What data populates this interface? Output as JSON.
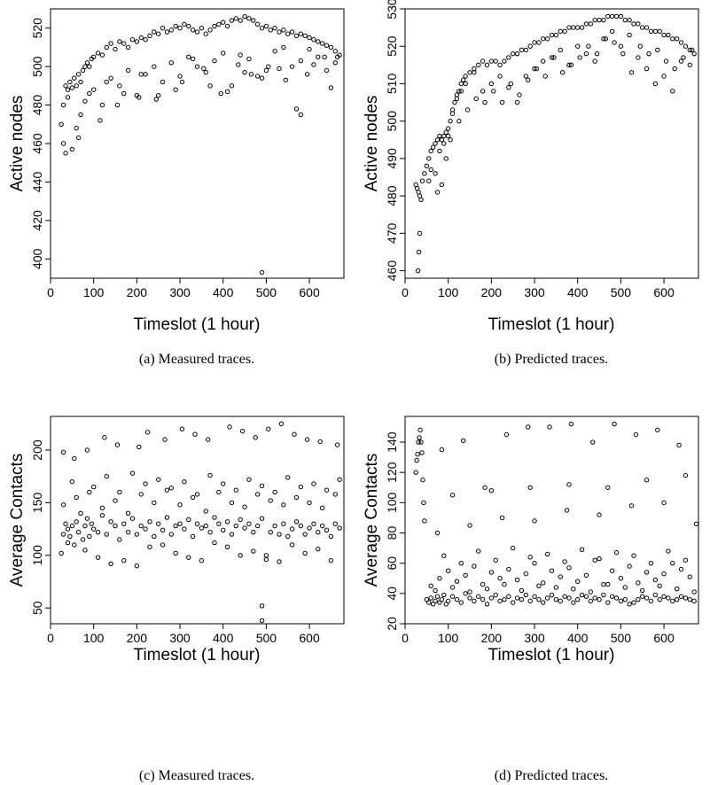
{
  "chart_data": [
    {
      "type": "scatter",
      "caption": "(a)  Measured traces.",
      "xlabel": "Timeslot (1 hour)",
      "ylabel": "Active nodes",
      "xlim": [
        0,
        680
      ],
      "ylim": [
        390,
        530
      ],
      "xticks": [
        0,
        100,
        200,
        300,
        400,
        500,
        600
      ],
      "yticks": [
        400,
        420,
        440,
        460,
        480,
        500,
        520
      ],
      "x": [
        25,
        30,
        35,
        40,
        45,
        50,
        55,
        60,
        65,
        70,
        75,
        80,
        85,
        90,
        95,
        100,
        110,
        120,
        130,
        140,
        150,
        160,
        170,
        180,
        190,
        200,
        210,
        220,
        230,
        240,
        250,
        260,
        270,
        280,
        290,
        300,
        310,
        320,
        330,
        340,
        350,
        360,
        370,
        380,
        390,
        400,
        410,
        420,
        430,
        440,
        450,
        460,
        470,
        480,
        490,
        500,
        510,
        520,
        530,
        540,
        550,
        560,
        570,
        580,
        590,
        600,
        610,
        620,
        630,
        640,
        650,
        660,
        670,
        30,
        50,
        60,
        70,
        80,
        100,
        120,
        140,
        160,
        180,
        200,
        220,
        240,
        260,
        280,
        300,
        320,
        340,
        360,
        380,
        400,
        420,
        440,
        460,
        480,
        500,
        520,
        540,
        560,
        580,
        600,
        620,
        640,
        660,
        40,
        90,
        130,
        170,
        210,
        250,
        290,
        330,
        370,
        410,
        450,
        490,
        530,
        570,
        610,
        650,
        490,
        580,
        35,
        65,
        115,
        155,
        205,
        245,
        305,
        355,
        395,
        435,
        465,
        505,
        545,
        595,
        635,
        665
      ],
      "y": [
        470,
        480,
        490,
        488,
        492,
        489,
        494,
        490,
        496,
        492,
        498,
        500,
        502,
        500,
        504,
        505,
        507,
        506,
        510,
        512,
        509,
        513,
        512,
        510,
        514,
        513,
        515,
        514,
        516,
        518,
        517,
        520,
        518,
        519,
        521,
        520,
        522,
        521,
        519,
        518,
        520,
        517,
        519,
        521,
        522,
        523,
        521,
        524,
        525,
        524,
        526,
        525,
        524,
        522,
        520,
        521,
        519,
        520,
        518,
        519,
        517,
        518,
        516,
        517,
        516,
        515,
        514,
        513,
        512,
        511,
        510,
        508,
        506,
        460,
        457,
        468,
        475,
        482,
        488,
        480,
        494,
        490,
        498,
        485,
        496,
        500,
        492,
        502,
        495,
        505,
        500,
        497,
        503,
        507,
        490,
        506,
        504,
        495,
        498,
        508,
        510,
        500,
        503,
        509,
        505,
        498,
        502,
        484,
        486,
        492,
        486,
        496,
        485,
        488,
        504,
        490,
        487,
        497,
        494,
        499,
        478,
        501,
        489,
        393,
        475,
        455,
        463,
        472,
        480,
        484,
        483,
        492,
        499,
        486,
        501,
        496,
        500,
        493,
        496,
        505,
        505
      ]
    },
    {
      "type": "scatter",
      "caption": "(b)  Predicted traces.",
      "xlabel": "Timeslot (1 hour)",
      "ylabel": "Active nodes",
      "xlim": [
        0,
        680
      ],
      "ylim": [
        458,
        530
      ],
      "xticks": [
        0,
        100,
        200,
        300,
        400,
        500,
        600
      ],
      "yticks": [
        460,
        470,
        480,
        490,
        500,
        510,
        520,
        530
      ],
      "x": [
        25,
        28,
        31,
        34,
        37,
        40,
        45,
        50,
        55,
        60,
        65,
        70,
        75,
        80,
        85,
        90,
        95,
        100,
        105,
        110,
        115,
        120,
        125,
        130,
        135,
        140,
        150,
        160,
        170,
        180,
        190,
        200,
        210,
        220,
        230,
        240,
        250,
        260,
        270,
        280,
        290,
        300,
        310,
        320,
        330,
        340,
        350,
        360,
        370,
        380,
        390,
        400,
        410,
        420,
        430,
        440,
        450,
        460,
        470,
        480,
        490,
        500,
        510,
        520,
        530,
        540,
        550,
        560,
        570,
        580,
        590,
        600,
        610,
        620,
        630,
        640,
        650,
        660,
        670,
        30,
        32,
        34,
        60,
        70,
        80,
        90,
        100,
        110,
        120,
        130,
        140,
        160,
        180,
        200,
        220,
        240,
        260,
        280,
        300,
        320,
        340,
        360,
        380,
        400,
        420,
        440,
        460,
        480,
        500,
        520,
        540,
        560,
        580,
        600,
        620,
        640,
        660,
        55,
        75,
        85,
        95,
        105,
        125,
        145,
        165,
        185,
        205,
        225,
        245,
        265,
        285,
        305,
        325,
        345,
        365,
        385,
        405,
        425,
        445,
        465,
        485,
        505,
        525,
        545,
        565,
        585,
        605,
        625,
        645,
        665
      ],
      "y": [
        483,
        482,
        481,
        480,
        479,
        484,
        486,
        488,
        490,
        492,
        493,
        494,
        495,
        496,
        495,
        496,
        497,
        498,
        500,
        503,
        505,
        507,
        508,
        510,
        511,
        512,
        513,
        514,
        515,
        516,
        515,
        516,
        516,
        515,
        516,
        517,
        518,
        518,
        519,
        519,
        520,
        521,
        521,
        522,
        522,
        523,
        523,
        524,
        524,
        525,
        525,
        525,
        525,
        526,
        526,
        527,
        527,
        527,
        528,
        528,
        528,
        528,
        527,
        527,
        526,
        526,
        525,
        525,
        524,
        524,
        524,
        523,
        523,
        522,
        522,
        521,
        520,
        519,
        518,
        460,
        465,
        470,
        487,
        486,
        492,
        494,
        496,
        502,
        506,
        508,
        510,
        513,
        508,
        510,
        512,
        509,
        505,
        512,
        514,
        516,
        517,
        519,
        515,
        520,
        518,
        516,
        522,
        524,
        520,
        523,
        517,
        514,
        510,
        512,
        508,
        516,
        515,
        484,
        481,
        483,
        490,
        495,
        500,
        503,
        506,
        505,
        508,
        505,
        510,
        507,
        511,
        514,
        512,
        517,
        513,
        515,
        517,
        520,
        518,
        522,
        521,
        518,
        513,
        520,
        518,
        519,
        516,
        514,
        517,
        519
      ]
    },
    {
      "type": "scatter",
      "caption": "(c)  Measured traces.",
      "xlabel": "Timeslot (1 hour)",
      "ylabel": "Average Contacts",
      "xlim": [
        0,
        680
      ],
      "ylim": [
        35,
        232
      ],
      "xticks": [
        0,
        100,
        200,
        300,
        400,
        500,
        600
      ],
      "yticks": [
        50,
        100,
        150,
        200
      ],
      "x": [
        25,
        30,
        35,
        40,
        45,
        50,
        55,
        60,
        65,
        70,
        75,
        80,
        85,
        90,
        95,
        100,
        110,
        120,
        130,
        140,
        150,
        160,
        170,
        180,
        190,
        200,
        210,
        220,
        230,
        240,
        250,
        260,
        270,
        280,
        290,
        300,
        310,
        320,
        330,
        340,
        350,
        360,
        370,
        380,
        390,
        400,
        410,
        420,
        430,
        440,
        450,
        460,
        470,
        480,
        490,
        500,
        510,
        520,
        530,
        540,
        550,
        560,
        570,
        580,
        590,
        600,
        610,
        620,
        630,
        640,
        650,
        660,
        670,
        30,
        60,
        90,
        120,
        150,
        180,
        210,
        240,
        270,
        300,
        330,
        360,
        390,
        420,
        450,
        480,
        510,
        540,
        570,
        600,
        630,
        660,
        40,
        80,
        110,
        140,
        170,
        200,
        230,
        260,
        290,
        320,
        350,
        380,
        410,
        440,
        470,
        500,
        530,
        560,
        590,
        620,
        650,
        50,
        100,
        130,
        160,
        190,
        220,
        250,
        280,
        310,
        340,
        370,
        400,
        430,
        460,
        490,
        520,
        550,
        580,
        610,
        640,
        670,
        490,
        490,
        30,
        55,
        85,
        125,
        155,
        205,
        225,
        265,
        305,
        335,
        365,
        415,
        445,
        475,
        505,
        535,
        565,
        595,
        625,
        665
      ],
      "y": [
        102,
        120,
        130,
        125,
        118,
        128,
        110,
        132,
        122,
        140,
        115,
        128,
        135,
        118,
        130,
        125,
        122,
        138,
        120,
        132,
        128,
        115,
        130,
        122,
        135,
        120,
        128,
        125,
        132,
        118,
        130,
        124,
        136,
        120,
        128,
        130,
        125,
        134,
        118,
        130,
        126,
        128,
        122,
        136,
        130,
        124,
        132,
        120,
        128,
        134,
        126,
        130,
        122,
        128,
        135,
        100,
        122,
        128,
        120,
        130,
        118,
        125,
        132,
        128,
        120,
        126,
        130,
        122,
        128,
        124,
        118,
        130,
        126,
        148,
        155,
        160,
        145,
        152,
        140,
        158,
        150,
        162,
        148,
        155,
        142,
        160,
        150,
        146,
        158,
        152,
        148,
        155,
        150,
        145,
        158,
        112,
        105,
        98,
        92,
        95,
        90,
        108,
        110,
        102,
        98,
        95,
        112,
        108,
        100,
        104,
        96,
        94,
        110,
        102,
        106,
        95,
        170,
        165,
        175,
        160,
        178,
        168,
        172,
        164,
        170,
        158,
        176,
        168,
        162,
        172,
        166,
        160,
        174,
        165,
        168,
        162,
        172,
        52,
        38,
        198,
        192,
        200,
        212,
        205,
        203,
        217,
        210,
        220,
        215,
        210,
        222,
        218,
        212,
        220,
        225,
        215,
        210,
        208,
        205
      ]
    },
    {
      "type": "scatter",
      "caption": "(d)  Predicted traces.",
      "xlabel": "Timeslot (1 hour)",
      "ylabel": "Average Contacts",
      "xlim": [
        0,
        680
      ],
      "ylim": [
        20,
        157
      ],
      "xticks": [
        0,
        100,
        200,
        300,
        400,
        500,
        600
      ],
      "yticks": [
        20,
        40,
        60,
        80,
        100,
        120,
        140
      ],
      "x": [
        25,
        27,
        29,
        31,
        33,
        35,
        37,
        39,
        41,
        43,
        45,
        50,
        55,
        60,
        65,
        70,
        75,
        80,
        85,
        90,
        95,
        100,
        110,
        120,
        130,
        140,
        150,
        160,
        170,
        180,
        190,
        200,
        210,
        220,
        230,
        240,
        250,
        260,
        270,
        280,
        290,
        300,
        310,
        320,
        330,
        340,
        350,
        360,
        370,
        380,
        390,
        400,
        410,
        420,
        430,
        440,
        450,
        460,
        470,
        480,
        490,
        500,
        510,
        520,
        530,
        540,
        550,
        560,
        570,
        580,
        590,
        600,
        610,
        620,
        630,
        640,
        650,
        660,
        670,
        60,
        80,
        100,
        120,
        140,
        160,
        180,
        200,
        220,
        240,
        260,
        280,
        300,
        320,
        340,
        360,
        380,
        400,
        420,
        440,
        460,
        480,
        500,
        520,
        540,
        560,
        580,
        600,
        620,
        640,
        660,
        70,
        110,
        150,
        190,
        230,
        270,
        310,
        350,
        390,
        430,
        470,
        510,
        550,
        590,
        630,
        670,
        90,
        130,
        170,
        210,
        250,
        290,
        330,
        370,
        410,
        450,
        490,
        530,
        570,
        610,
        650,
        75,
        150,
        225,
        300,
        375,
        450,
        525,
        600,
        675,
        110,
        200,
        290,
        380,
        470,
        560,
        650,
        85,
        135,
        185,
        235,
        285,
        335,
        385,
        435,
        485,
        535,
        585,
        635
      ],
      "y": [
        120,
        128,
        132,
        140,
        143,
        148,
        140,
        133,
        115,
        100,
        88,
        36,
        34,
        37,
        33,
        35,
        38,
        34,
        36,
        39,
        33,
        35,
        38,
        36,
        34,
        40,
        37,
        35,
        38,
        36,
        33,
        37,
        39,
        35,
        36,
        38,
        34,
        37,
        36,
        39,
        35,
        38,
        36,
        34,
        37,
        39,
        36,
        35,
        38,
        37,
        34,
        36,
        39,
        38,
        35,
        37,
        36,
        39,
        34,
        38,
        37,
        35,
        36,
        33,
        34,
        36,
        38,
        37,
        35,
        39,
        36,
        38,
        37,
        35,
        36,
        38,
        37,
        36,
        35,
        45,
        50,
        55,
        48,
        52,
        58,
        46,
        54,
        50,
        56,
        49,
        53,
        60,
        47,
        55,
        51,
        57,
        48,
        52,
        62,
        46,
        55,
        50,
        58,
        47,
        54,
        49,
        53,
        60,
        56,
        51,
        42,
        44,
        41,
        43,
        46,
        42,
        45,
        44,
        43,
        41,
        46,
        44,
        42,
        45,
        43,
        41,
        65,
        60,
        68,
        62,
        70,
        64,
        66,
        61,
        69,
        63,
        67,
        65,
        60,
        68,
        62,
        80,
        85,
        90,
        88,
        95,
        92,
        98,
        100,
        86,
        105,
        108,
        110,
        112,
        110,
        115,
        118,
        135,
        141,
        110,
        145,
        150,
        150,
        152,
        140,
        152,
        145,
        148,
        138
      ]
    }
  ]
}
